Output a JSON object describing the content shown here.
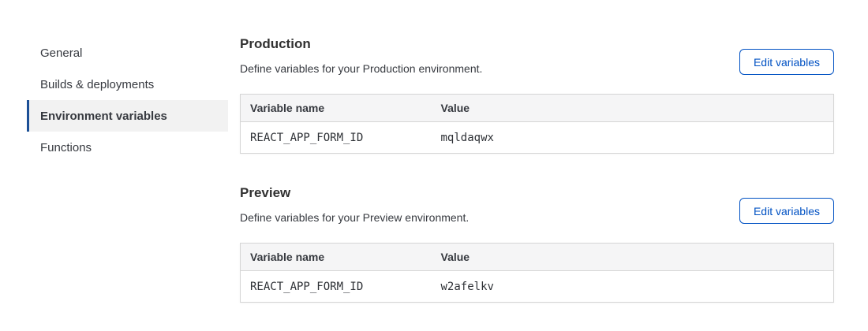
{
  "colors": {
    "accent_blue": "#0051c3",
    "nav_active_marker": "#1c5096",
    "nav_active_bg": "#f2f2f2",
    "table_header_bg": "#f5f5f6",
    "border_gray": "#d5d5d5",
    "text": "#36393f"
  },
  "sidebar": {
    "items": [
      {
        "label": "General",
        "active": false
      },
      {
        "label": "Builds & deployments",
        "active": false
      },
      {
        "label": "Environment variables",
        "active": true
      },
      {
        "label": "Functions",
        "active": false
      }
    ]
  },
  "sections": [
    {
      "title": "Production",
      "description": "Define variables for your Production environment.",
      "button_label": "Edit variables",
      "table": {
        "headers": [
          "Variable name",
          "Value"
        ],
        "rows": [
          {
            "name": "REACT_APP_FORM_ID",
            "value": "mqldaqwx"
          }
        ]
      }
    },
    {
      "title": "Preview",
      "description": "Define variables for your Preview environment.",
      "button_label": "Edit variables",
      "table": {
        "headers": [
          "Variable name",
          "Value"
        ],
        "rows": [
          {
            "name": "REACT_APP_FORM_ID",
            "value": "w2afelkv"
          }
        ]
      }
    }
  ]
}
